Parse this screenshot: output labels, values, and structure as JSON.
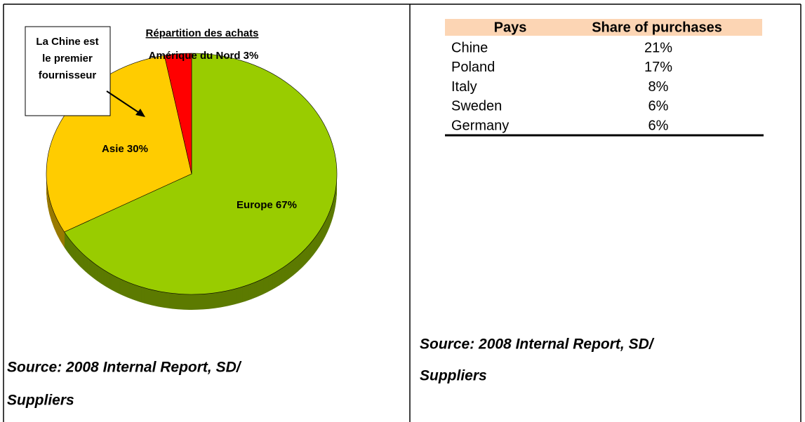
{
  "chart_data": {
    "type": "pie",
    "title": "Répartition des achats",
    "categories": [
      "Europe",
      "Asie",
      "Amérique du Nord"
    ],
    "values": [
      67,
      30,
      3
    ],
    "value_labels": [
      "67%",
      "30%",
      "3%"
    ],
    "colors": [
      "#99cc00",
      "#ffcc00",
      "#ff0000"
    ],
    "annotation": [
      "La Chine est",
      "le premier",
      "fournisseur"
    ]
  },
  "left_source": [
    "Source: 2008 Internal Report, SD/",
    "Suppliers"
  ],
  "table": {
    "header": [
      "Pays",
      "Share of purchases"
    ],
    "rows": [
      [
        "Chine",
        "21%"
      ],
      [
        "Poland",
        "17%"
      ],
      [
        "Italy",
        "8%"
      ],
      [
        "Sweden",
        "6%"
      ],
      [
        "Germany",
        "6%"
      ]
    ]
  },
  "right_source": [
    "Source: 2008 Internal Report, SD/",
    "Suppliers"
  ]
}
